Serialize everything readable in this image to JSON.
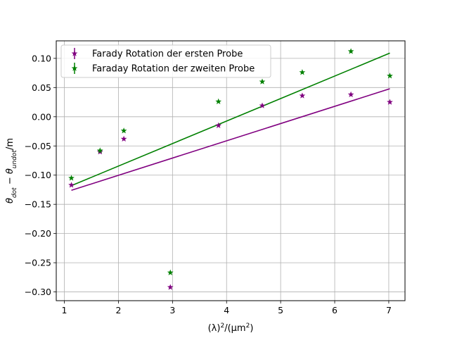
{
  "chart_data": {
    "type": "scatter",
    "xlabel": "(λ)²/(μm²)",
    "ylabel": "θdot − θundot/m",
    "ylabel_parts": {
      "main": "θ",
      "sub1": "dot",
      "minus": " − θ",
      "sub2": "undot",
      "unit": "/m"
    },
    "xlabel_parts": {
      "open": "(λ)",
      "sup1": "2",
      "mid": "/(μm",
      "sup2": "2",
      "close": ")"
    },
    "xlim": [
      0.85,
      7.3
    ],
    "ylim": [
      -0.315,
      0.13
    ],
    "x_ticks": [
      1,
      2,
      3,
      4,
      5,
      6,
      7
    ],
    "y_ticks": [
      -0.3,
      -0.25,
      -0.2,
      -0.15,
      -0.1,
      -0.05,
      0.0,
      0.05,
      0.1
    ],
    "x_tick_labels": [
      "1",
      "2",
      "3",
      "4",
      "5",
      "6",
      "7"
    ],
    "y_tick_labels": [
      "−0.30",
      "−0.25",
      "−0.20",
      "−0.15",
      "−0.10",
      "−0.05",
      "0.00",
      "0.05",
      "0.10"
    ],
    "grid": true,
    "legend_position": "top-left",
    "series": [
      {
        "name": "Farady Rotation der ersten Probe",
        "color": "#800080",
        "marker": "star",
        "x": [
          1.13,
          1.66,
          2.1,
          2.96,
          3.85,
          4.66,
          5.4,
          6.3,
          7.02
        ],
        "y": [
          -0.117,
          -0.06,
          -0.038,
          -0.292,
          -0.015,
          0.019,
          0.036,
          0.038,
          0.025
        ],
        "fit": {
          "x": [
            1.13,
            7.02
          ],
          "y": [
            -0.126,
            0.048
          ]
        }
      },
      {
        "name": "Faraday Rotation der zweiten Probe",
        "color": "#008000",
        "marker": "star",
        "x": [
          1.13,
          1.66,
          2.1,
          2.96,
          3.85,
          4.66,
          5.4,
          6.3,
          7.02
        ],
        "y": [
          -0.105,
          -0.058,
          -0.024,
          -0.267,
          0.026,
          0.06,
          0.076,
          0.112,
          0.07
        ],
        "fit": {
          "x": [
            1.13,
            7.02
          ],
          "y": [
            -0.118,
            0.109
          ]
        }
      }
    ]
  }
}
